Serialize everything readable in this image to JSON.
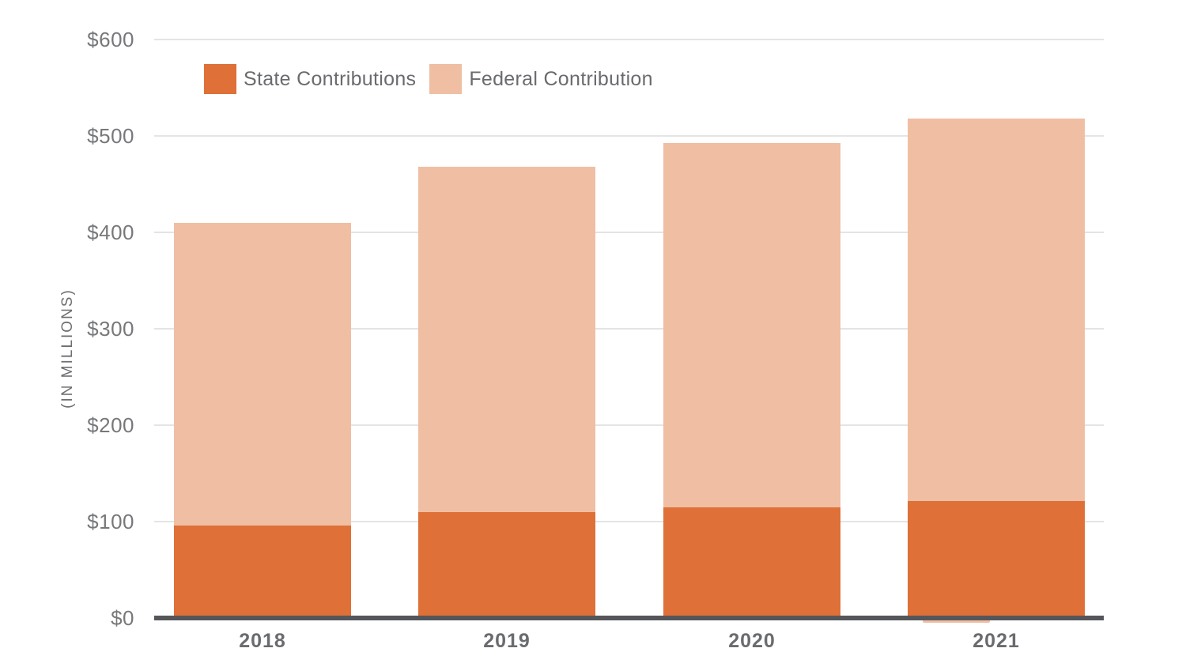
{
  "chart_data": {
    "type": "bar",
    "stacked": true,
    "title": "",
    "xlabel": "",
    "ylabel": "(IN MILLIONS)",
    "categories": [
      "2018",
      "2019",
      "2020",
      "2021"
    ],
    "series": [
      {
        "name": "State Contributions",
        "color": "#DE7038",
        "values": [
          96,
          110,
          115,
          121
        ]
      },
      {
        "name": "Federal Contribution",
        "color": "#F0BEA3",
        "values": [
          314,
          358,
          378,
          397
        ]
      }
    ],
    "stack_totals": [
      410,
      468,
      493,
      518
    ],
    "ylim": [
      0,
      600
    ],
    "y_ticks": [
      "$0",
      "$100",
      "$200",
      "$300",
      "$400",
      "$500",
      "$600"
    ],
    "y_tick_values": [
      0,
      100,
      200,
      300,
      400,
      500,
      600
    ],
    "grid": true,
    "legend_position": "top-left",
    "legend": [
      "State Contributions",
      "Federal Contribution"
    ]
  },
  "colors": {
    "background": "#FFFFFF",
    "gridline": "#E4E4E4",
    "axis_line": "#55565A",
    "tick_text": "#77787B",
    "category_text": "#6A6B6E",
    "legend_text": "#6A6B6E",
    "state_bar": "#DE7038",
    "federal_bar": "#F0BEA3"
  }
}
